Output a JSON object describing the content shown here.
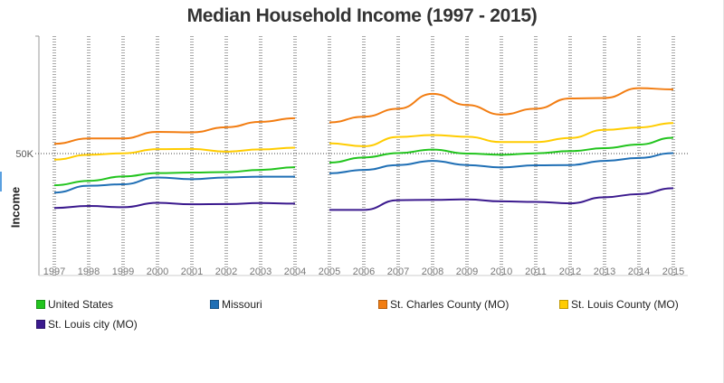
{
  "chart_data": {
    "type": "line",
    "title": "Median Household Income (1997 - 2015)",
    "xlabel": "",
    "ylabel": "Income",
    "x": [
      "1997",
      "1998",
      "1999",
      "2000",
      "2001",
      "2002",
      "2003",
      "2004",
      "2005",
      "2006",
      "2007",
      "2008",
      "2009",
      "2010",
      "2011",
      "2012",
      "2013",
      "2014",
      "2015"
    ],
    "gap_after": "2004",
    "yticks": [
      {
        "value": 50000,
        "label": "50K"
      }
    ],
    "ylim": [
      0,
      100000
    ],
    "grid": "vertical dotted gridlines, dotted reference line at 50K",
    "legend_position": "bottom",
    "series": [
      {
        "name": "United States",
        "color": "#22c41e",
        "values": [
          37000,
          38800,
          40600,
          42000,
          42200,
          42400,
          43300,
          44400,
          46300,
          48400,
          50200,
          51600,
          50000,
          49500,
          50100,
          51000,
          52200,
          53700,
          56500
        ]
      },
      {
        "name": "Missouri",
        "color": "#1f6fb5",
        "values": [
          34000,
          36800,
          37400,
          40200,
          39500,
          40200,
          40500,
          40500,
          41900,
          43300,
          45300,
          47000,
          45300,
          44300,
          45200,
          45300,
          47000,
          48200,
          50200
        ]
      },
      {
        "name": "St. Charles County (MO)",
        "color": "#f27d12",
        "values": [
          54000,
          56200,
          56200,
          58900,
          58700,
          60800,
          63000,
          64500,
          62800,
          65100,
          68400,
          74500,
          69900,
          66000,
          68400,
          72600,
          72800,
          76800,
          76300
        ]
      },
      {
        "name": "St. Louis County (MO)",
        "color": "#ffcc00",
        "values": [
          47500,
          49500,
          50100,
          51800,
          51900,
          50800,
          51700,
          52400,
          54200,
          53000,
          56800,
          57600,
          56900,
          54700,
          54700,
          56400,
          59700,
          60700,
          62500
        ]
      },
      {
        "name": "St. Louis city (MO)",
        "color": "#3b1a8e",
        "values": [
          27700,
          28500,
          28000,
          29800,
          29200,
          29300,
          29700,
          29500,
          26900,
          26900,
          30900,
          31000,
          31200,
          30400,
          30200,
          29600,
          32100,
          33400,
          35800
        ]
      }
    ]
  }
}
